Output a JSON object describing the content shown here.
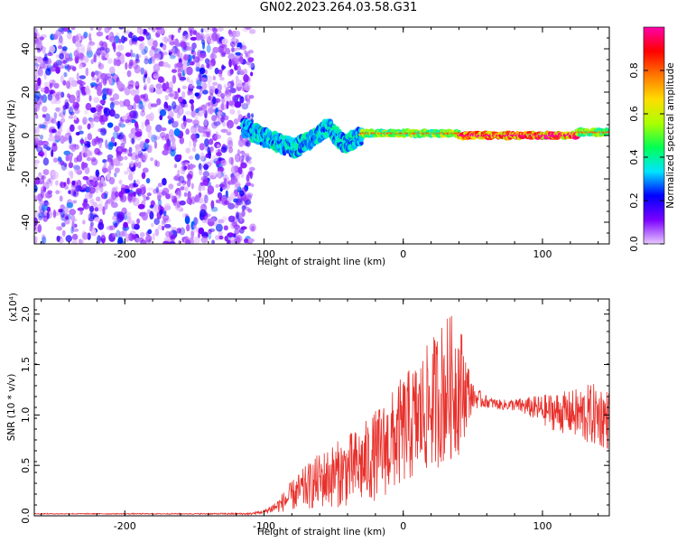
{
  "title": "GN02.2023.264.03.58.G31",
  "chart_data": [
    {
      "type": "heatmap",
      "panel": "top",
      "description_kind": "spectrogram",
      "xlabel": "Height of straight line (km)",
      "ylabel": "Frequency (Hz)",
      "xlim": [
        -265,
        148
      ],
      "ylim": [
        -50,
        50
      ],
      "xticks": [
        -200,
        -100,
        0,
        100
      ],
      "xtick_labels": [
        "-200",
        "-100",
        "0",
        "100"
      ],
      "yticks": [
        -40,
        -20,
        0,
        20,
        40
      ],
      "ytick_labels": [
        "-40",
        "-20",
        "0",
        "20",
        "40"
      ],
      "colorbar": {
        "label": "Normalized spectral amplitude",
        "range": [
          0,
          1
        ],
        "ticks": [
          0.0,
          0.2,
          0.4,
          0.6,
          0.8
        ],
        "tick_labels": [
          "0.0",
          "0.2",
          "0.4",
          "0.6",
          "0.8"
        ],
        "colors": [
          "#e8c8ff",
          "#7a00ff",
          "#0000ff",
          "#00e5ff",
          "#00ff55",
          "#aaff00",
          "#ffdd00",
          "#ff7700",
          "#ff0000",
          "#ff00aa"
        ]
      },
      "regions": [
        {
          "x_range": [
            -265,
            -108
          ],
          "freq_range": [
            -50,
            50
          ],
          "amplitude": 0.1,
          "pattern": "noise"
        },
        {
          "x_range": [
            -115,
            -30
          ],
          "center_freq": [
            4,
            0,
            -3,
            -6,
            -2,
            4,
            -4,
            0
          ],
          "amplitude": 0.35,
          "pattern": "wavy signal"
        },
        {
          "x_range": [
            -30,
            40
          ],
          "center_freq": 1,
          "amplitude": 0.55,
          "pattern": "stable signal"
        },
        {
          "x_range": [
            40,
            125
          ],
          "center_freq": 0,
          "amplitude": 0.85,
          "pattern": "strong stable signal"
        },
        {
          "x_range": [
            125,
            148
          ],
          "center_freq": 1.5,
          "amplitude": 0.55,
          "pattern": "stable signal"
        }
      ]
    },
    {
      "type": "line",
      "panel": "bottom",
      "xlabel": "Height of straight line (km)",
      "ylabel": "SNR (10 * v/v)",
      "y_multiplier": "(x10⁴)",
      "xlim": [
        -265,
        148
      ],
      "ylim": [
        0,
        2.15
      ],
      "xticks": [
        -200,
        -100,
        0,
        100
      ],
      "xtick_labels": [
        "-200",
        "-100",
        "0",
        "100"
      ],
      "yticks": [
        0.0,
        0.5,
        1.0,
        1.5,
        2.0
      ],
      "ytick_labels": [
        "0.0",
        "0.5",
        "1.0",
        "1.5",
        "2.0"
      ],
      "color": "#e8302b",
      "series": [
        {
          "x": [
            -265,
            -200,
            -150,
            -110,
            -100,
            -90,
            -80,
            -70,
            -60,
            -50,
            -40,
            -30,
            -20,
            -10,
            0,
            10,
            20,
            30,
            40,
            50,
            60,
            70,
            80,
            90,
            100,
            110,
            120,
            130,
            140,
            148
          ],
          "y": [
            0.02,
            0.02,
            0.02,
            0.02,
            0.04,
            0.1,
            0.2,
            0.28,
            0.35,
            0.4,
            0.45,
            0.5,
            0.6,
            0.7,
            0.85,
            0.95,
            1.1,
            1.25,
            1.3,
            1.18,
            1.13,
            1.1,
            1.1,
            1.08,
            1.05,
            1.03,
            1.02,
            1.0,
            1.0,
            0.95
          ],
          "spread": [
            0.005,
            0.005,
            0.005,
            0.01,
            0.02,
            0.07,
            0.15,
            0.22,
            0.28,
            0.32,
            0.36,
            0.4,
            0.45,
            0.5,
            0.55,
            0.6,
            0.65,
            0.75,
            0.7,
            0.12,
            0.06,
            0.05,
            0.06,
            0.1,
            0.15,
            0.2,
            0.22,
            0.3,
            0.32,
            0.3
          ]
        }
      ]
    }
  ]
}
